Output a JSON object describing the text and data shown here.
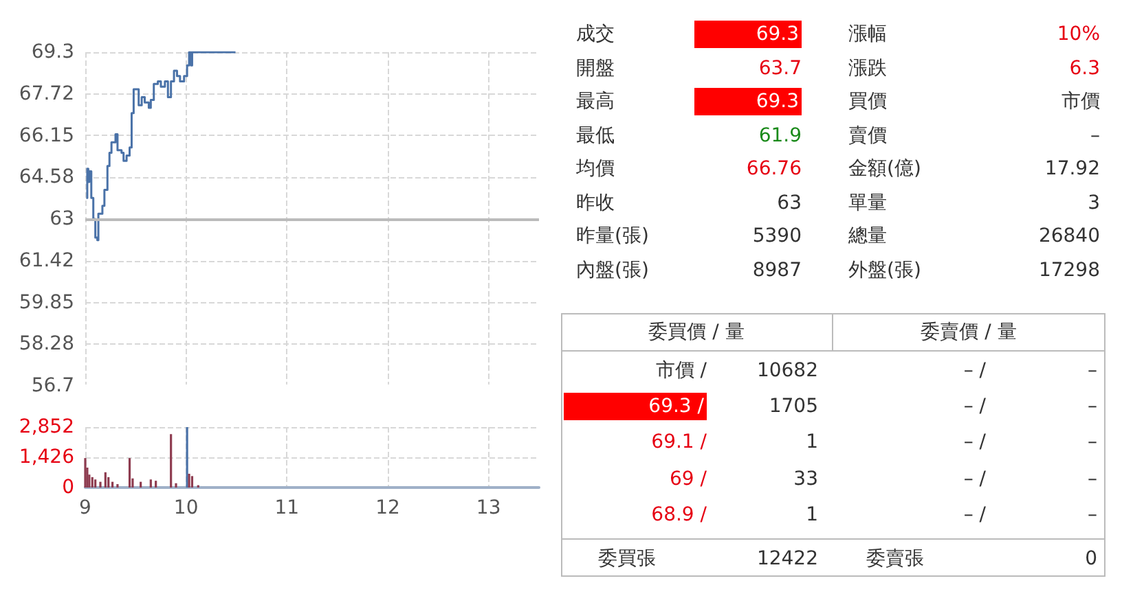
{
  "chart_data": [
    {
      "type": "step",
      "x": [
        9.01,
        9.02,
        9.03,
        9.04,
        9.06,
        9.08,
        9.1,
        9.12,
        9.13,
        9.17,
        9.19,
        9.22,
        9.24,
        9.26,
        9.3,
        9.32,
        9.36,
        9.38,
        9.41,
        9.44,
        9.46,
        9.48,
        9.51,
        9.53,
        9.56,
        9.59,
        9.63,
        9.65,
        9.68,
        9.72,
        9.75,
        9.79,
        9.82,
        9.85,
        9.88,
        9.91,
        9.94,
        9.98,
        10.01,
        10.03,
        10.05,
        10.06,
        10.49
      ],
      "values": [
        63.8,
        64.9,
        64.4,
        64.8,
        63.8,
        63.0,
        62.3,
        62.2,
        63.2,
        63.5,
        64.1,
        65.0,
        65.5,
        65.9,
        66.2,
        65.6,
        65.5,
        65.2,
        65.4,
        65.7,
        67.0,
        67.9,
        67.9,
        67.3,
        67.6,
        67.4,
        67.2,
        67.5,
        68.1,
        68.2,
        68.0,
        68.2,
        67.6,
        68.2,
        68.6,
        68.4,
        68.2,
        68.4,
        68.8,
        69.3,
        68.8,
        69.3,
        69.3
      ],
      "color": "#4a72a8",
      "marker": "none",
      "xlim": [
        9,
        13.5
      ],
      "xticks": [
        9,
        10,
        11,
        12,
        13
      ],
      "ylim": [
        56.7,
        69.3
      ],
      "yticks": [
        56.7,
        58.28,
        59.85,
        61.42,
        63,
        64.58,
        66.15,
        67.72,
        69.3
      ],
      "grid": true,
      "tick_labels": "y",
      "ref_lines": [
        {
          "axis": "y",
          "value": 63,
          "color": "#bbbbbb"
        }
      ]
    },
    {
      "type": "bar",
      "x": [
        9.0,
        9.02,
        9.04,
        9.07,
        9.1,
        9.15,
        9.2,
        9.23,
        9.27,
        9.32,
        9.44,
        9.47,
        9.55,
        9.65,
        9.7,
        9.85,
        9.9,
        10.01,
        10.03,
        10.06,
        10.12
      ],
      "values": [
        1390,
        940,
        610,
        490,
        380,
        270,
        720,
        490,
        270,
        160,
        1390,
        430,
        270,
        380,
        320,
        2520,
        200,
        2852,
        650,
        540,
        110
      ],
      "colors": [
        "#8e3c50",
        "#8e3c50",
        "#8e3c50",
        "#8e3c50",
        "#8e3c50",
        "#8e3c50",
        "#8e3c50",
        "#8e3c50",
        "#8e3c50",
        "#8e3c50",
        "#8e3c50",
        "#8e3c50",
        "#8e3c50",
        "#8e3c50",
        "#8e3c50",
        "#8e3c50",
        "#8e3c50",
        "#4a72a8",
        "#8e3c50",
        "#8e3c50",
        "#8e3c50"
      ],
      "xlim": [
        9,
        13.5
      ],
      "xticks": [
        9,
        10,
        11,
        12,
        13
      ],
      "ylim": [
        0,
        2852
      ],
      "yticks": [
        0,
        {
          "value": 1426,
          "label": "1,426"
        },
        {
          "value": 2852,
          "label": "2,852"
        }
      ],
      "grid": true
    },
    {
      "type": "other",
      "annotations": [
        "成交",
        "69.3",
        "漲幅",
        "10%",
        "開盤",
        "63.7",
        "漲跌",
        "6.3",
        "最高",
        "69.3",
        "買價",
        "市價",
        "最低",
        "61.9",
        "賣價",
        "–",
        "均價",
        "66.76",
        "金額(億)",
        "17.92",
        "昨收",
        "63",
        "單量",
        "3",
        "昨量(張)",
        "5390",
        "總量",
        "26840",
        "內盤(張)",
        "8987",
        "外盤(張)",
        "17298",
        "委買價 / 量",
        "委賣價 / 量",
        "市價 /",
        "10682",
        "– /",
        "–",
        "69.3 /",
        "1705",
        "– /",
        "–",
        "69.1 /",
        "1",
        "– /",
        "–",
        "69 /",
        "33",
        "– /",
        "–",
        "68.9 /",
        "1",
        "– /",
        "–",
        "委買張",
        "12422",
        "委賣張",
        "0"
      ]
    }
  ]
}
